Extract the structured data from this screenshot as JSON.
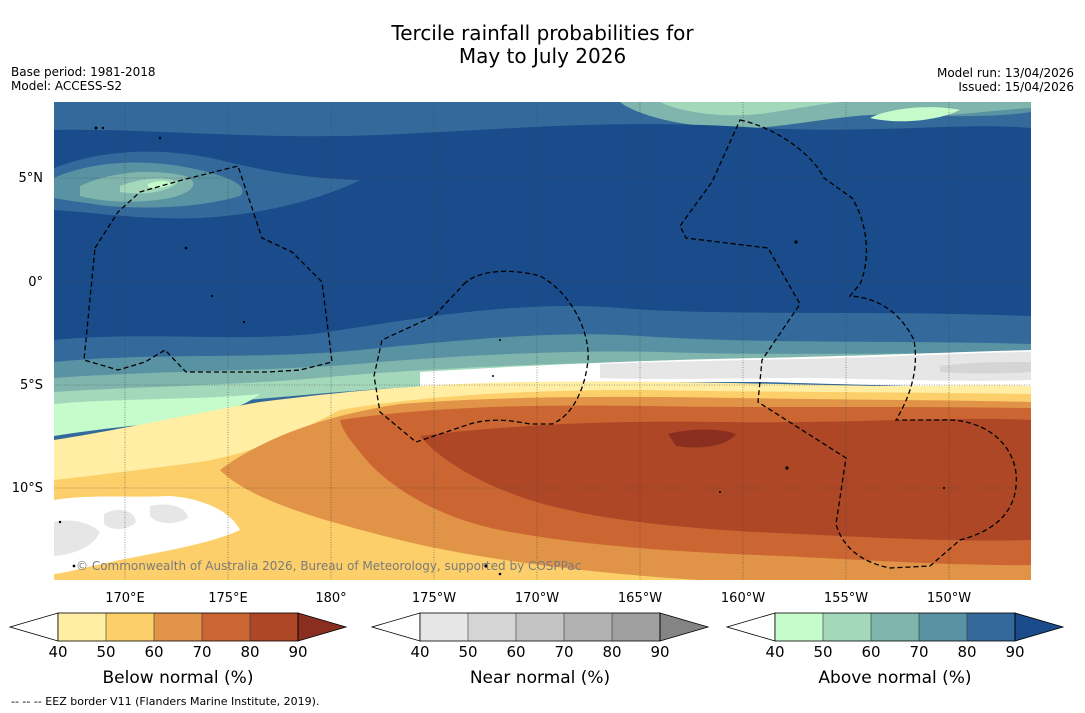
{
  "title": {
    "line1": "Tercile rainfall probabilities for",
    "line2": "May to July 2026"
  },
  "meta_left": {
    "base_period": "Base period: 1981-2018",
    "model": "Model: ACCESS-S2"
  },
  "meta_right": {
    "model_run": "Model run: 13/04/2026",
    "issued": "Issued: 15/04/2026"
  },
  "map": {
    "lat_labels": [
      "5°N",
      "0°",
      "5°S",
      "10°S"
    ],
    "lon_labels": [
      "170°E",
      "175°E",
      "180°",
      "175°W",
      "170°W",
      "165°W",
      "160°W",
      "155°W",
      "150°W"
    ],
    "credit": "© Commonwealth of Australia 2026, Bureau of Meteorology, supported by COSPPac"
  },
  "colorbars": [
    {
      "label": "Below normal (%)",
      "ticks": [
        "40",
        "50",
        "60",
        "70",
        "80",
        "90"
      ],
      "colors": [
        "#ffffff",
        "#ffeea3",
        "#fdcf6a",
        "#e19447",
        "#cb6633",
        "#ad4726",
        "#8a2f1f"
      ]
    },
    {
      "label": "Near normal (%)",
      "ticks": [
        "40",
        "50",
        "60",
        "70",
        "80",
        "90"
      ],
      "colors": [
        "#ffffff",
        "#e6e6e6",
        "#d5d5d5",
        "#c4c4c4",
        "#b2b2b2",
        "#9f9f9f",
        "#848484"
      ]
    },
    {
      "label": "Above normal (%)",
      "ticks": [
        "40",
        "50",
        "60",
        "70",
        "80",
        "90"
      ],
      "colors": [
        "#ffffff",
        "#c6fbcb",
        "#a3d8bb",
        "#7fb5ac",
        "#5992a2",
        "#346a9b",
        "#1a4b8a"
      ]
    }
  ],
  "footnote": "--  --  -- EEZ border V11 (Flanders Marine Institute, 2019)."
}
